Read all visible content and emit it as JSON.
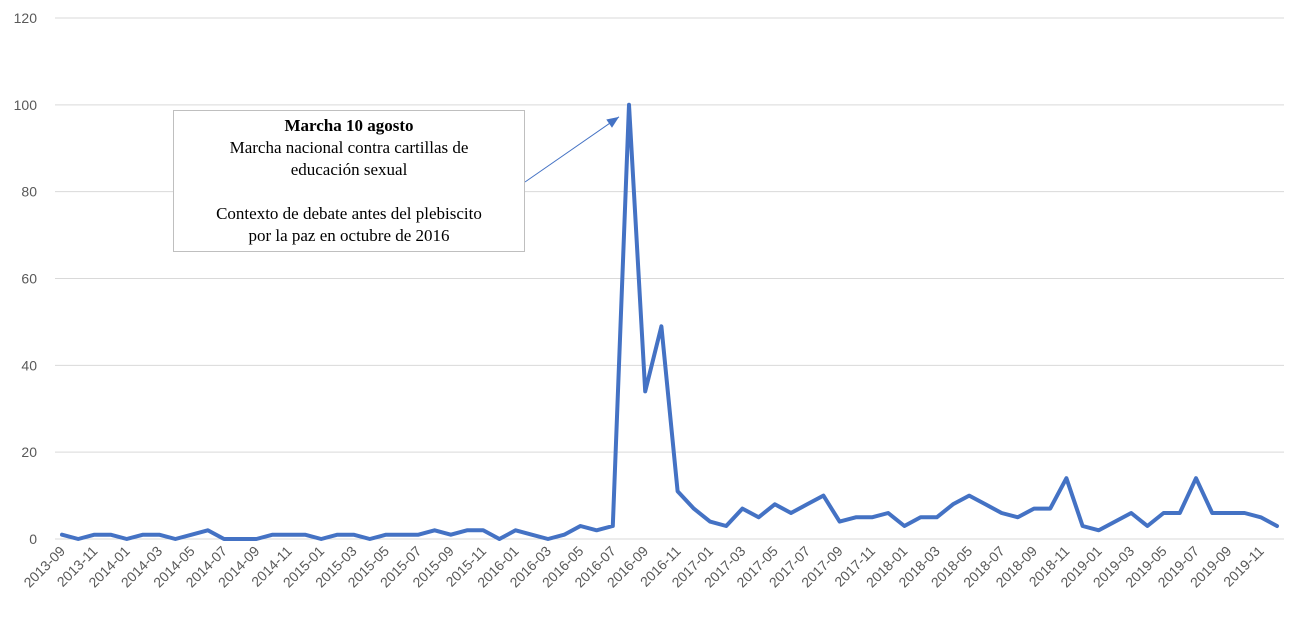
{
  "chart_data": {
    "type": "line",
    "title": "",
    "xlabel": "",
    "ylabel": "",
    "ylim": [
      0,
      120
    ],
    "yticks": [
      0,
      20,
      40,
      60,
      80,
      100,
      120
    ],
    "grid": true,
    "legend": "none",
    "series_color": "#4472c4",
    "x": [
      "2013-09",
      "2013-10",
      "2013-11",
      "2013-12",
      "2014-01",
      "2014-02",
      "2014-03",
      "2014-04",
      "2014-05",
      "2014-06",
      "2014-07",
      "2014-08",
      "2014-09",
      "2014-10",
      "2014-11",
      "2014-12",
      "2015-01",
      "2015-02",
      "2015-03",
      "2015-04",
      "2015-05",
      "2015-06",
      "2015-07",
      "2015-08",
      "2015-09",
      "2015-10",
      "2015-11",
      "2015-12",
      "2016-01",
      "2016-02",
      "2016-03",
      "2016-04",
      "2016-05",
      "2016-06",
      "2016-07",
      "2016-08",
      "2016-09",
      "2016-10",
      "2016-11",
      "2016-12",
      "2017-01",
      "2017-02",
      "2017-03",
      "2017-04",
      "2017-05",
      "2017-06",
      "2017-07",
      "2017-08",
      "2017-09",
      "2017-10",
      "2017-11",
      "2017-12",
      "2018-01",
      "2018-02",
      "2018-03",
      "2018-04",
      "2018-05",
      "2018-06",
      "2018-07",
      "2018-08",
      "2018-09",
      "2018-10",
      "2018-11",
      "2018-12",
      "2019-01",
      "2019-02",
      "2019-03",
      "2019-04",
      "2019-05",
      "2019-06",
      "2019-07",
      "2019-08",
      "2019-09",
      "2019-10",
      "2019-11",
      "2019-12"
    ],
    "x_tick_labels": [
      "2013-09",
      "2013-11",
      "2014-01",
      "2014-03",
      "2014-05",
      "2014-07",
      "2014-09",
      "2014-11",
      "2015-01",
      "2015-03",
      "2015-05",
      "2015-07",
      "2015-09",
      "2015-11",
      "2016-01",
      "2016-03",
      "2016-05",
      "2016-07",
      "2016-09",
      "2016-11",
      "2017-01",
      "2017-03",
      "2017-05",
      "2017-07",
      "2017-09",
      "2017-11",
      "2018-01",
      "2018-03",
      "2018-05",
      "2018-07",
      "2018-09",
      "2018-11",
      "2019-01",
      "2019-03",
      "2019-05",
      "2019-07",
      "2019-09",
      "2019-11"
    ],
    "series": [
      {
        "values": [
          1,
          0,
          1,
          1,
          0,
          1,
          1,
          0,
          1,
          2,
          0,
          0,
          0,
          1,
          1,
          1,
          0,
          1,
          1,
          0,
          1,
          1,
          1,
          2,
          1,
          2,
          2,
          0,
          2,
          1,
          0,
          1,
          3,
          2,
          3,
          100,
          34,
          49,
          11,
          7,
          4,
          3,
          7,
          5,
          8,
          6,
          8,
          10,
          4,
          5,
          5,
          6,
          3,
          5,
          5,
          8,
          10,
          8,
          6,
          5,
          7,
          7,
          14,
          3,
          2,
          4,
          6,
          3,
          6,
          6,
          14,
          6,
          6,
          6,
          5,
          3
        ]
      }
    ],
    "annotation": {
      "target_x": "2016-08",
      "target_y": 100,
      "title": "Marcha 10 agosto",
      "lines": [
        "Marcha nacional contra cartillas de",
        "educación sexual",
        "",
        "Contexto de debate antes del plebiscito",
        "por la paz en octubre de 2016"
      ]
    }
  }
}
